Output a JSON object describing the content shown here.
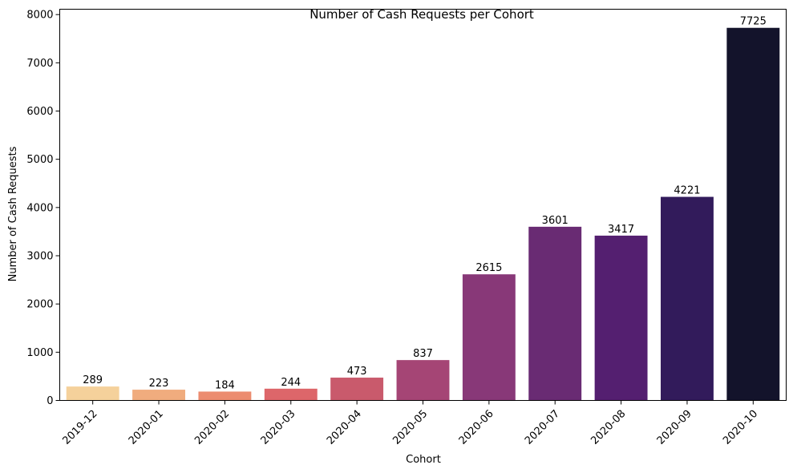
{
  "chart_data": {
    "type": "bar",
    "title": "Number of Cash Requests per Cohort",
    "xlabel": "Cohort",
    "ylabel": "Number of Cash Requests",
    "categories": [
      "2019-12",
      "2020-01",
      "2020-02",
      "2020-03",
      "2020-04",
      "2020-05",
      "2020-06",
      "2020-07",
      "2020-08",
      "2020-09",
      "2020-10"
    ],
    "values": [
      289,
      223,
      184,
      244,
      473,
      837,
      2615,
      3601,
      3417,
      4221,
      7725
    ],
    "data_labels": [
      "289",
      "223",
      "184",
      "244",
      "473",
      "837",
      "2615",
      "3601",
      "3417",
      "4221",
      "7725"
    ],
    "bar_colors": [
      "#f5d19b",
      "#f0ac7e",
      "#ec8c6f",
      "#dd666a",
      "#c95a6c",
      "#a54575",
      "#883878",
      "#692b73",
      "#541f70",
      "#321b5b",
      "#13132b"
    ],
    "yticks": [
      0,
      1000,
      2000,
      3000,
      4000,
      5000,
      6000,
      7000,
      8000
    ],
    "ytick_labels": [
      "0",
      "1000",
      "2000",
      "3000",
      "4000",
      "5000",
      "6000",
      "7000",
      "8000"
    ],
    "ylim": [
      0,
      8111
    ],
    "xtick_rotation": 45,
    "grid": false,
    "legend": "none"
  }
}
